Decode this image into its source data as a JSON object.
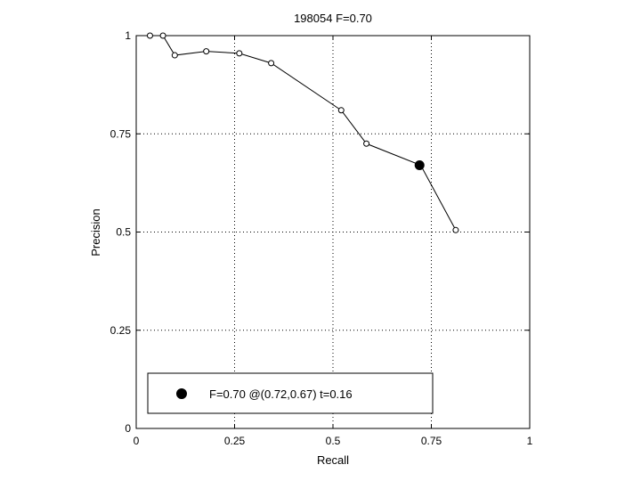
{
  "chart_data": {
    "type": "line",
    "title": "198054 F=0.70",
    "xlabel": "Recall",
    "ylabel": "Precision",
    "xlim": [
      0,
      1
    ],
    "ylim": [
      0,
      1
    ],
    "grid": true,
    "x_ticks": [
      0,
      0.25,
      0.5,
      0.75,
      1
    ],
    "x_tick_labels": [
      "0",
      "0.25",
      "0.5",
      "0.75",
      "1"
    ],
    "y_ticks": [
      0,
      0.25,
      0.5,
      0.75,
      1
    ],
    "y_tick_labels": [
      "0",
      "0.25",
      "0.5",
      "0.75",
      "1"
    ],
    "series": [
      {
        "marker": "open-circle",
        "color": "#000000",
        "x": [
          0.035,
          0.068,
          0.098,
          0.178,
          0.262,
          0.343,
          0.521,
          0.585,
          0.723,
          0.812
        ],
        "y": [
          1.0,
          1.0,
          0.95,
          0.96,
          0.955,
          0.93,
          0.81,
          0.725,
          0.67,
          0.505
        ]
      }
    ],
    "highlight": {
      "x": 0.72,
      "y": 0.67,
      "marker": "filled-circle",
      "color": "#000000"
    },
    "legend": {
      "position": "bottom-left",
      "label": "F=0.70 @(0.72,0.67) t=0.16"
    }
  }
}
